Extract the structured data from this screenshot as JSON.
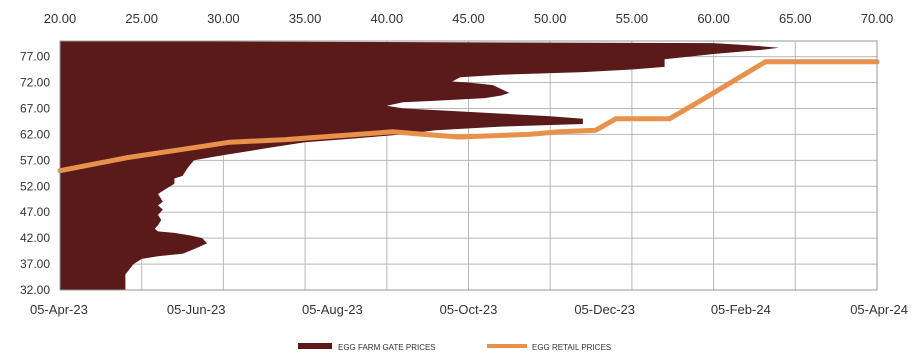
{
  "chart_data": {
    "type": "combo",
    "grid": true,
    "legend_position": "bottom",
    "top_axis": {
      "ticks": [
        "20.00",
        "25.00",
        "30.00",
        "35.00",
        "40.00",
        "45.00",
        "50.00",
        "55.00",
        "60.00",
        "65.00",
        "70.00"
      ],
      "range": [
        20,
        70
      ]
    },
    "left_axis": {
      "ticks": [
        "32.00",
        "37.00",
        "42.00",
        "47.00",
        "52.00",
        "57.00",
        "62.00",
        "67.00",
        "72.00",
        "77.00"
      ],
      "range": [
        32,
        80
      ]
    },
    "bottom_axis": {
      "ticks": [
        "05-Apr-23",
        "05-Jun-23",
        "05-Aug-23",
        "05-Oct-23",
        "05-Dec-23",
        "05-Feb-24",
        "05-Apr-24"
      ],
      "range": [
        "2023-04-05",
        "2024-04-05"
      ]
    },
    "series": [
      {
        "name": "EGG FARM GATE PRICES",
        "type": "area",
        "color": "#5b1a1a",
        "axes": "top-x / left-y",
        "points": [
          [
            20.0,
            32.0
          ],
          [
            24.0,
            32.0
          ],
          [
            24.0,
            35.0
          ],
          [
            24.5,
            37.0
          ],
          [
            25.0,
            38.0
          ],
          [
            26.0,
            38.5
          ],
          [
            27.5,
            39.0
          ],
          [
            28.3,
            40.0
          ],
          [
            29.0,
            41.0
          ],
          [
            28.7,
            42.0
          ],
          [
            28.0,
            42.5
          ],
          [
            27.0,
            43.0
          ],
          [
            26.0,
            43.3
          ],
          [
            25.8,
            43.8
          ],
          [
            26.0,
            44.5
          ],
          [
            26.2,
            45.5
          ],
          [
            26.0,
            46.5
          ],
          [
            26.3,
            47.5
          ],
          [
            26.0,
            48.3
          ],
          [
            26.3,
            49.0
          ],
          [
            26.0,
            50.5
          ],
          [
            26.5,
            51.5
          ],
          [
            27.0,
            52.5
          ],
          [
            27.0,
            53.5
          ],
          [
            27.5,
            54.0
          ],
          [
            27.8,
            55.5
          ],
          [
            28.2,
            57.0
          ],
          [
            30.0,
            58.0
          ],
          [
            33.0,
            59.5
          ],
          [
            35.0,
            60.5
          ],
          [
            38.0,
            61.2
          ],
          [
            41.0,
            62.0
          ],
          [
            43.0,
            62.8
          ],
          [
            47.0,
            63.5
          ],
          [
            52.0,
            64.0
          ],
          [
            52.0,
            65.0
          ],
          [
            50.0,
            65.5
          ],
          [
            47.0,
            66.0
          ],
          [
            44.0,
            66.5
          ],
          [
            41.0,
            67.0
          ],
          [
            40.0,
            67.5
          ],
          [
            41.0,
            68.2
          ],
          [
            43.0,
            68.5
          ],
          [
            46.0,
            69.0
          ],
          [
            47.0,
            69.5
          ],
          [
            47.5,
            70.0
          ],
          [
            46.5,
            71.5
          ],
          [
            45.0,
            72.0
          ],
          [
            44.0,
            72.2
          ],
          [
            44.5,
            73.0
          ],
          [
            47.0,
            73.5
          ],
          [
            52.0,
            74.0
          ],
          [
            55.0,
            74.5
          ],
          [
            57.0,
            75.0
          ],
          [
            57.0,
            76.5
          ],
          [
            60.0,
            77.5
          ],
          [
            63.0,
            78.3
          ],
          [
            64.0,
            78.7
          ],
          [
            62.0,
            79.2
          ],
          [
            60.0,
            79.6
          ],
          [
            20.0,
            80.0
          ]
        ]
      },
      {
        "name": "EGG RETAIL PRICES",
        "type": "line",
        "color": "#e8914a",
        "axes": "bottom-x / left-y",
        "points": [
          [
            "2023-04-05",
            55.0
          ],
          [
            "2023-05-05",
            57.5
          ],
          [
            "2023-06-05",
            59.5
          ],
          [
            "2023-06-20",
            60.5
          ],
          [
            "2023-07-15",
            61.0
          ],
          [
            "2023-08-10",
            61.8
          ],
          [
            "2023-09-01",
            62.5
          ],
          [
            "2023-09-15",
            62.0
          ],
          [
            "2023-10-01",
            61.5
          ],
          [
            "2023-11-01",
            62.0
          ],
          [
            "2023-11-15",
            62.5
          ],
          [
            "2023-12-01",
            62.8
          ],
          [
            "2023-12-10",
            65.0
          ],
          [
            "2024-01-03",
            65.0
          ],
          [
            "2024-01-15",
            68.0
          ],
          [
            "2024-02-15",
            76.0
          ],
          [
            "2024-04-05",
            76.0
          ]
        ]
      }
    ]
  }
}
